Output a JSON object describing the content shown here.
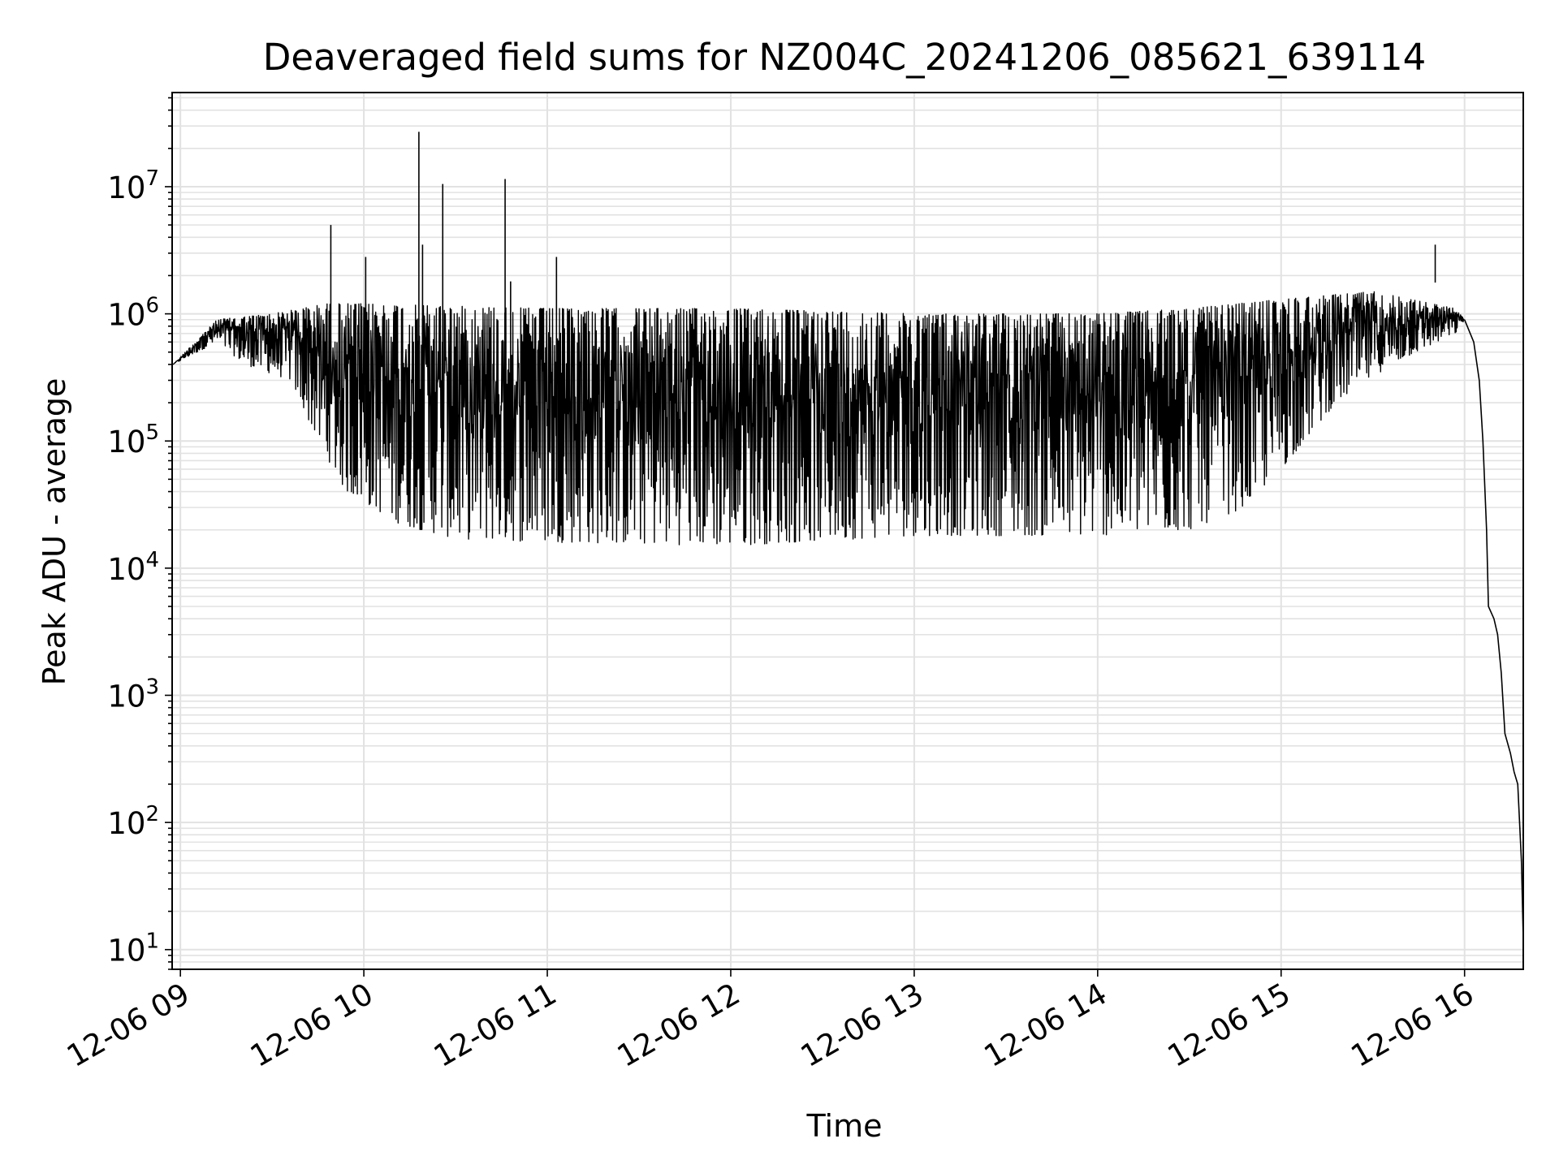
{
  "chart_data": {
    "type": "line",
    "title": "Deaveraged field sums for NZ004C_20241206_085621_639114",
    "xlabel": "Time",
    "ylabel": "Peak ADU - average",
    "yscale": "log",
    "xlim_hours": [
      8.955,
      16.32
    ],
    "ylim": [
      7,
      55000000
    ],
    "grid": true,
    "x_tick_labels": [
      "12-06 09",
      "12-06 10",
      "12-06 11",
      "12-06 12",
      "12-06 13",
      "12-06 14",
      "12-06 15",
      "12-06 16"
    ],
    "x_tick_hours": [
      9,
      10,
      11,
      12,
      13,
      14,
      15,
      16
    ],
    "y_tick_labels": [
      {
        "base": "10",
        "exp": "1",
        "value": 10
      },
      {
        "base": "10",
        "exp": "2",
        "value": 100
      },
      {
        "base": "10",
        "exp": "3",
        "value": 1000
      },
      {
        "base": "10",
        "exp": "4",
        "value": 10000
      },
      {
        "base": "10",
        "exp": "5",
        "value": 100000
      },
      {
        "base": "10",
        "exp": "6",
        "value": 1000000
      },
      {
        "base": "10",
        "exp": "7",
        "value": 10000000
      }
    ],
    "series": [
      {
        "color": "#000000",
        "envelope_upper": [
          [
            8.96,
            400000
          ],
          [
            9.2,
            900000
          ],
          [
            9.5,
            1000000
          ],
          [
            9.8,
            1200000
          ],
          [
            10.0,
            1200000
          ],
          [
            11.0,
            1100000
          ],
          [
            12.0,
            1100000
          ],
          [
            13.0,
            1000000
          ],
          [
            14.0,
            1000000
          ],
          [
            14.5,
            1100000
          ],
          [
            15.0,
            1300000
          ],
          [
            15.5,
            1500000
          ],
          [
            15.95,
            1100000
          ],
          [
            16.0,
            900000
          ]
        ],
        "envelope_lower": [
          [
            8.96,
            400000
          ],
          [
            9.2,
            600000
          ],
          [
            9.35,
            400000
          ],
          [
            9.6,
            300000
          ],
          [
            9.75,
            100000
          ],
          [
            9.9,
            40000
          ],
          [
            10.2,
            22000
          ],
          [
            10.5,
            17000
          ],
          [
            11.0,
            16000
          ],
          [
            12.0,
            15000
          ],
          [
            13.0,
            18000
          ],
          [
            14.0,
            18000
          ],
          [
            14.5,
            20000
          ],
          [
            14.8,
            30000
          ],
          [
            15.0,
            60000
          ],
          [
            15.3,
            200000
          ],
          [
            15.6,
            400000
          ],
          [
            15.95,
            700000
          ],
          [
            16.0,
            900000
          ]
        ],
        "decay": [
          [
            16.0,
            900000
          ],
          [
            16.05,
            600000
          ],
          [
            16.08,
            300000
          ],
          [
            16.1,
            100000
          ],
          [
            16.12,
            20000
          ],
          [
            16.13,
            5000
          ],
          [
            16.16,
            4000
          ],
          [
            16.18,
            3000
          ],
          [
            16.2,
            1500
          ],
          [
            16.22,
            500
          ],
          [
            16.25,
            350
          ],
          [
            16.27,
            250
          ],
          [
            16.29,
            200
          ],
          [
            16.31,
            50
          ],
          [
            16.32,
            12
          ]
        ],
        "spikes": [
          {
            "hour": 9.82,
            "value": 5000000
          },
          {
            "hour": 10.01,
            "value": 2800000
          },
          {
            "hour": 10.3,
            "value": 27000000
          },
          {
            "hour": 10.32,
            "value": 3500000
          },
          {
            "hour": 10.43,
            "value": 10500000
          },
          {
            "hour": 10.77,
            "value": 11500000
          },
          {
            "hour": 10.8,
            "value": 1800000
          },
          {
            "hour": 11.05,
            "value": 2800000
          },
          {
            "hour": 15.84,
            "value": 3500000
          }
        ]
      }
    ]
  }
}
